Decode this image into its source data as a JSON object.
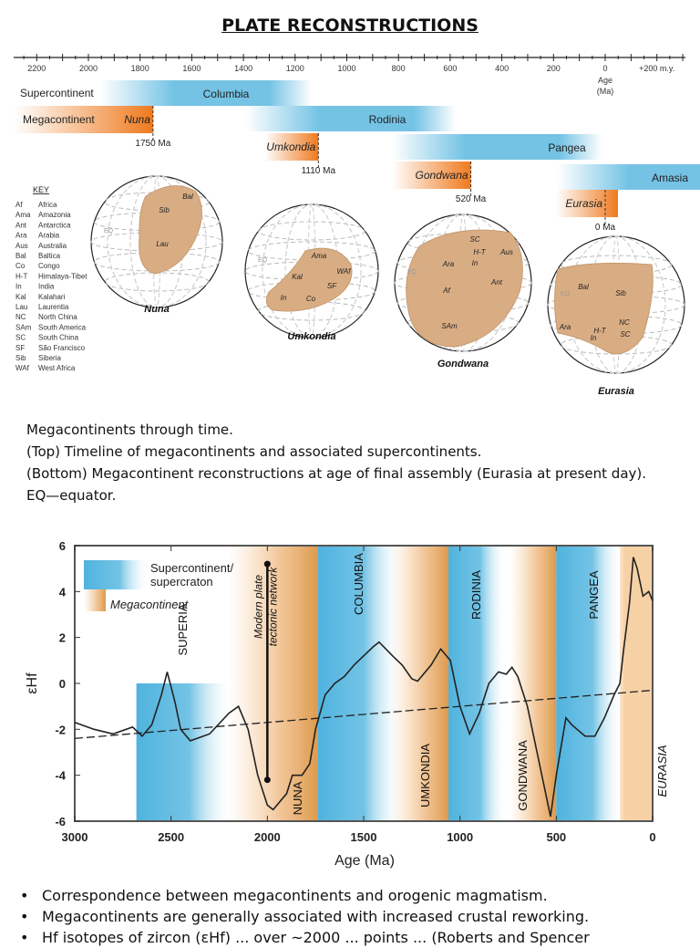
{
  "title": "PLATE RECONSTRUCTIONS",
  "timeline": {
    "ticks": [
      "2200",
      "2000",
      "1800",
      "1600",
      "1400",
      "1200",
      "1000",
      "800",
      "600",
      "400",
      "200",
      "0",
      "+200 m.y."
    ],
    "age_label_1": "Age",
    "age_label_2": "(Ma)",
    "row_supercontinent": "Supercontinent",
    "row_megacontinent": "Megacontinent",
    "supercontinents": [
      "Columbia",
      "Rodinia",
      "Pangea",
      "Amasia"
    ],
    "megacontinents": [
      "Nuna",
      "Umkondia",
      "Gondwana",
      "Eurasia"
    ],
    "assembly_ages": [
      "1750 Ma",
      "1110 Ma",
      "520 Ma",
      "0 Ma"
    ],
    "colors": {
      "supercontinent": "#5bb8e0",
      "megacontinent": "#ef7a1e",
      "land": "#d9ad84"
    }
  },
  "globes": [
    {
      "name": "Nuna",
      "labels": [
        "Sib",
        "Bal",
        "Lau"
      ],
      "eq": "EQ"
    },
    {
      "name": "Umkondia",
      "labels": [
        "Ama",
        "WAf",
        "Kal",
        "SF",
        "In",
        "Co"
      ],
      "eq": "EQ"
    },
    {
      "name": "Gondwana",
      "labels": [
        "SC",
        "H-T",
        "Aus",
        "Ara",
        "In",
        "Ant",
        "Af",
        "SAm"
      ],
      "eq": "EQ"
    },
    {
      "name": "Eurasia",
      "labels": [
        "Bal",
        "Sib",
        "NC",
        "Ara",
        "H-T",
        "SC",
        "In"
      ],
      "eq": "EQ"
    }
  ],
  "key": {
    "title": "KEY",
    "items": [
      [
        "Af",
        "Africa"
      ],
      [
        "Ama",
        "Amazonia"
      ],
      [
        "Ant",
        "Antarctica"
      ],
      [
        "Ara",
        "Arabia"
      ],
      [
        "Aus",
        "Australia"
      ],
      [
        "Bal",
        "Baltica"
      ],
      [
        "Co",
        "Congo"
      ],
      [
        "H-T",
        "Himalaya-Tibet"
      ],
      [
        "In",
        "India"
      ],
      [
        "Kal",
        "Kalahari"
      ],
      [
        "Lau",
        "Laurentia"
      ],
      [
        "NC",
        "North China"
      ],
      [
        "SAm",
        "South America"
      ],
      [
        "SC",
        "South China"
      ],
      [
        "SF",
        "São Francisco"
      ],
      [
        "Sib",
        "Siberia"
      ],
      [
        "WAf",
        "West Africa"
      ]
    ]
  },
  "caption": [
    "Megacontinents through time.",
    "(Top) Timeline of megacontinents and associated supercontinents.",
    "(Bottom) Megacontinent reconstructions at age of final assembly (Eurasia at present day).",
    "EQ—equator."
  ],
  "chart_data": {
    "type": "line",
    "xlabel": "Age (Ma)",
    "ylabel": "εHf",
    "xlim": [
      3000,
      0
    ],
    "ylim": [
      -6,
      6
    ],
    "xticks": [
      3000,
      2500,
      2000,
      1500,
      1000,
      500,
      0
    ],
    "yticks": [
      -6,
      -4,
      -2,
      0,
      2,
      4,
      6
    ],
    "legend": {
      "position": "top-left",
      "items": [
        "Supercontinent/ supercraton",
        "Megacontinent"
      ]
    },
    "series": [
      {
        "x": [
          3000,
          2900,
          2800,
          2700,
          2650,
          2600,
          2550,
          2520,
          2480,
          2450,
          2400,
          2300,
          2200,
          2150,
          2100,
          2050,
          2000,
          1970,
          1900,
          1870,
          1820,
          1780,
          1750,
          1700,
          1650,
          1600,
          1550,
          1500,
          1450,
          1420,
          1350,
          1300,
          1250,
          1220,
          1150,
          1100,
          1050,
          1000,
          950,
          900,
          850,
          800,
          760,
          730,
          700,
          650,
          600,
          550,
          530,
          500,
          450,
          420,
          350,
          300,
          250,
          200,
          170,
          150,
          120,
          100,
          80,
          50,
          20,
          0
        ],
        "y": [
          -1.7,
          -2.0,
          -2.2,
          -1.9,
          -2.3,
          -1.8,
          -0.5,
          0.5,
          -0.8,
          -2.0,
          -2.5,
          -2.2,
          -1.3,
          -1.0,
          -2.0,
          -4.0,
          -5.3,
          -5.5,
          -4.8,
          -4.0,
          -4.0,
          -3.5,
          -2.0,
          -0.5,
          0.0,
          0.3,
          0.8,
          1.2,
          1.6,
          1.8,
          1.2,
          0.8,
          0.2,
          0.1,
          0.8,
          1.5,
          1.0,
          -1.0,
          -2.2,
          -1.3,
          0.0,
          0.5,
          0.4,
          0.7,
          0.3,
          -1.0,
          -3.0,
          -5.0,
          -5.8,
          -4.0,
          -1.5,
          -1.8,
          -2.3,
          -2.3,
          -1.5,
          -0.5,
          0.0,
          1.5,
          3.5,
          5.5,
          5.0,
          3.8,
          4.0,
          3.6
        ]
      }
    ],
    "trend": {
      "x": [
        3000,
        0
      ],
      "y": [
        -2.4,
        -0.3
      ]
    },
    "marker": {
      "label_1": "Modern plate",
      "label_2": "tectonic network",
      "x": 2000,
      "y": [
        5.2,
        -4.2
      ]
    },
    "bands": [
      {
        "label": "SUPERIA",
        "kind": "supercontinent",
        "from": 2680,
        "to": 2180,
        "ymax": 0
      },
      {
        "label": "NUNA",
        "kind": "megacontinent",
        "from": 2200,
        "to": 1740
      },
      {
        "label": "COLUMBIA",
        "kind": "supercontinent",
        "from": 1740,
        "to": 1300
      },
      {
        "label": "UMKONDIA",
        "kind": "megacontinent",
        "from": 1360,
        "to": 1060
      },
      {
        "label": "RODINIA",
        "kind": "supercontinent",
        "from": 1060,
        "to": 760
      },
      {
        "label": "GONDWANA",
        "kind": "megacontinent",
        "from": 740,
        "to": 500
      },
      {
        "label": "PANGEA",
        "kind": "supercontinent",
        "from": 500,
        "to": 160
      },
      {
        "label": "EURASIA",
        "kind": "megacontinent",
        "from": 170,
        "to": 0
      }
    ]
  },
  "bullets": [
    "Correspondence between megacontinents and orogenic magmatism.",
    "Megacontinents are generally associated with increased crustal reworking.",
    "Hf isotopes of zircon (εHf) ... over ~2000 ... points ... (Roberts and Spencer"
  ]
}
